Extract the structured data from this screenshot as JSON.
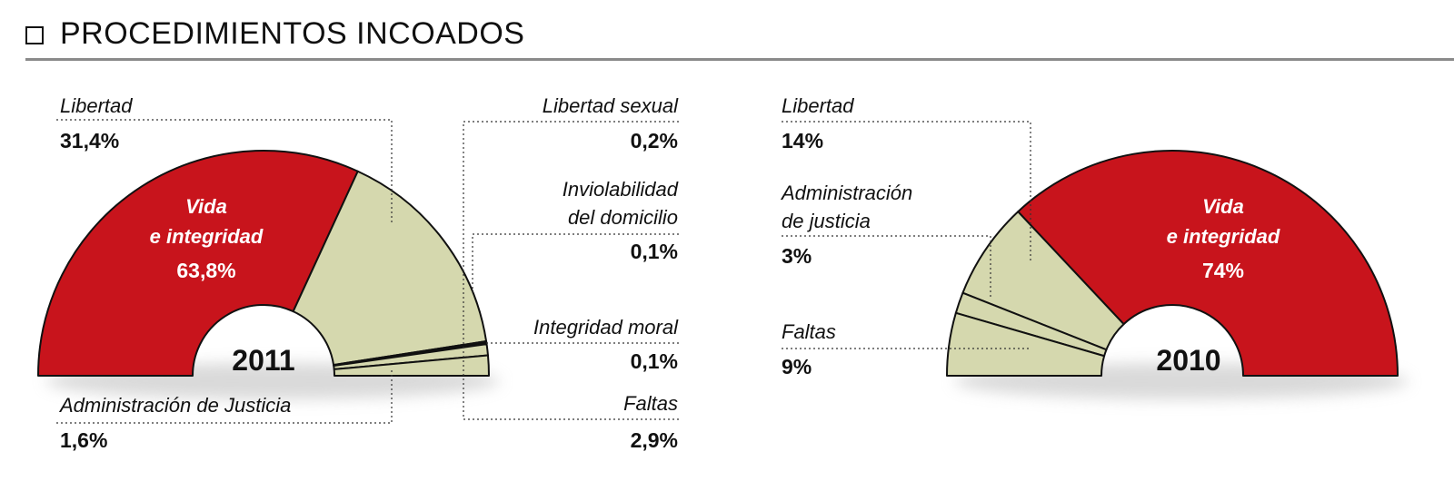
{
  "title": "PROCEDIMIENTOS INCOADOS",
  "colors": {
    "red": "#c8141c",
    "khaki": "#d5d8ae",
    "outline": "#111111"
  },
  "chart_data": [
    {
      "type": "pie",
      "year_label": "2011",
      "slices": [
        {
          "label": "Vida e integridad",
          "value": 63.8,
          "display": "63,8%",
          "color": "#c8141c"
        },
        {
          "label": "Libertad",
          "value": 31.4,
          "display": "31,4%",
          "color": "#d5d8ae"
        },
        {
          "label": "Libertad sexual",
          "value": 0.2,
          "display": "0,2%",
          "color": "#d5d8ae"
        },
        {
          "label": "Inviolabilidad del domicilio",
          "value": 0.1,
          "display": "0,1%",
          "color": "#d5d8ae"
        },
        {
          "label": "Integridad moral",
          "value": 0.1,
          "display": "0,1%",
          "color": "#d5d8ae"
        },
        {
          "label": "Administración de Justicia",
          "value": 1.6,
          "display": "1,6%",
          "color": "#d5d8ae"
        },
        {
          "label": "Faltas",
          "value": 2.9,
          "display": "2,9%",
          "color": "#d5d8ae"
        }
      ]
    },
    {
      "type": "pie",
      "year_label": "2010",
      "slices": [
        {
          "label": "Vida e integridad",
          "value": 74,
          "display": "74%",
          "color": "#c8141c"
        },
        {
          "label": "Libertad",
          "value": 14,
          "display": "14%",
          "color": "#d5d8ae"
        },
        {
          "label": "Administración de justicia",
          "value": 3,
          "display": "3%",
          "color": "#d5d8ae"
        },
        {
          "label": "Faltas",
          "value": 9,
          "display": "9%",
          "color": "#d5d8ae"
        }
      ]
    }
  ],
  "labels_2011": {
    "vida_line1": "Vida",
    "vida_line2": "e integridad",
    "vida_pct": "63,8%",
    "year": "2011",
    "libertad": "Libertad",
    "libertad_pct": "31,4%",
    "libertad_sexual": "Libertad sexual",
    "libertad_sexual_pct": "0,2%",
    "inviolabilidad_line1": "Inviolabilidad",
    "inviolabilidad_line2": "del domicilio",
    "inviolabilidad_pct": "0,1%",
    "integridad_moral": "Integridad moral",
    "integridad_moral_pct": "0,1%",
    "administracion": "Administración de Justicia",
    "administracion_pct": "1,6%",
    "faltas": "Faltas",
    "faltas_pct": "2,9%"
  },
  "labels_2010": {
    "vida_line1": "Vida",
    "vida_line2": "e integridad",
    "vida_pct": "74%",
    "year": "2010",
    "libertad": "Libertad",
    "libertad_pct": "14%",
    "administracion_line1": "Administración",
    "administracion_line2": "de justicia",
    "administracion_pct": "3%",
    "faltas": "Faltas",
    "faltas_pct": "9%"
  }
}
